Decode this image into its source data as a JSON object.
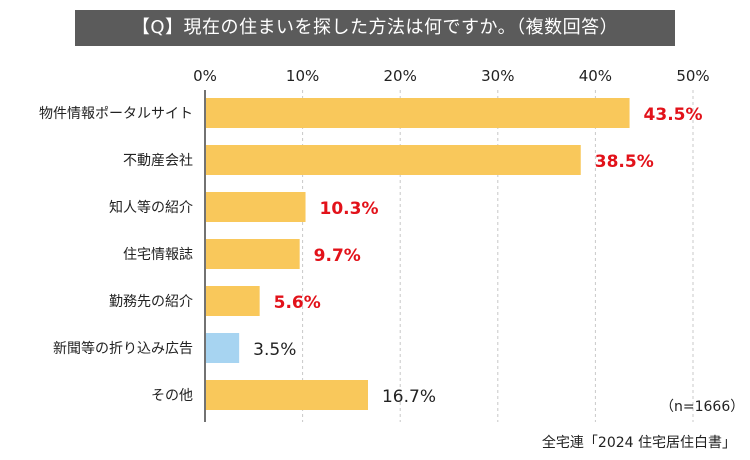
{
  "header": {
    "title": "【Q】現在の住まいを探した方法は何ですか。（複数回答）"
  },
  "footer": {
    "note": "（n=1666）",
    "source": "全宅連「2024 住宅居住白書」"
  },
  "colors": {
    "bar": "#f9c85b",
    "bar_highlight": "#a7d4f1",
    "label_red": "#e2121a",
    "label_dark": "#222222",
    "grid": "#c8c8c8",
    "axis": "#444444"
  },
  "chart_data": {
    "type": "bar",
    "orientation": "horizontal",
    "categories": [
      "物件情報ポータルサイト",
      "不動産会社",
      "知人等の紹介",
      "住宅情報誌",
      "勤務先の紹介",
      "新聞等の折り込み広告",
      "その他"
    ],
    "values": [
      43.5,
      38.5,
      10.3,
      9.7,
      5.6,
      3.5,
      16.7
    ],
    "value_labels": [
      "43.5%",
      "38.5%",
      "10.3%",
      "9.7%",
      "5.6%",
      "3.5%",
      "16.7%"
    ],
    "label_styles": [
      "red",
      "red",
      "red",
      "red",
      "red",
      "dark",
      "dark"
    ],
    "bar_styles": [
      "normal",
      "normal",
      "normal",
      "normal",
      "normal",
      "highlight",
      "normal"
    ],
    "x_ticks": [
      0,
      10,
      20,
      30,
      40,
      50
    ],
    "x_tick_labels": [
      "0%",
      "10%",
      "20%",
      "30%",
      "40%",
      "50%"
    ],
    "xlim": [
      0,
      50
    ],
    "grid": true,
    "xlabel": "",
    "ylabel": ""
  }
}
